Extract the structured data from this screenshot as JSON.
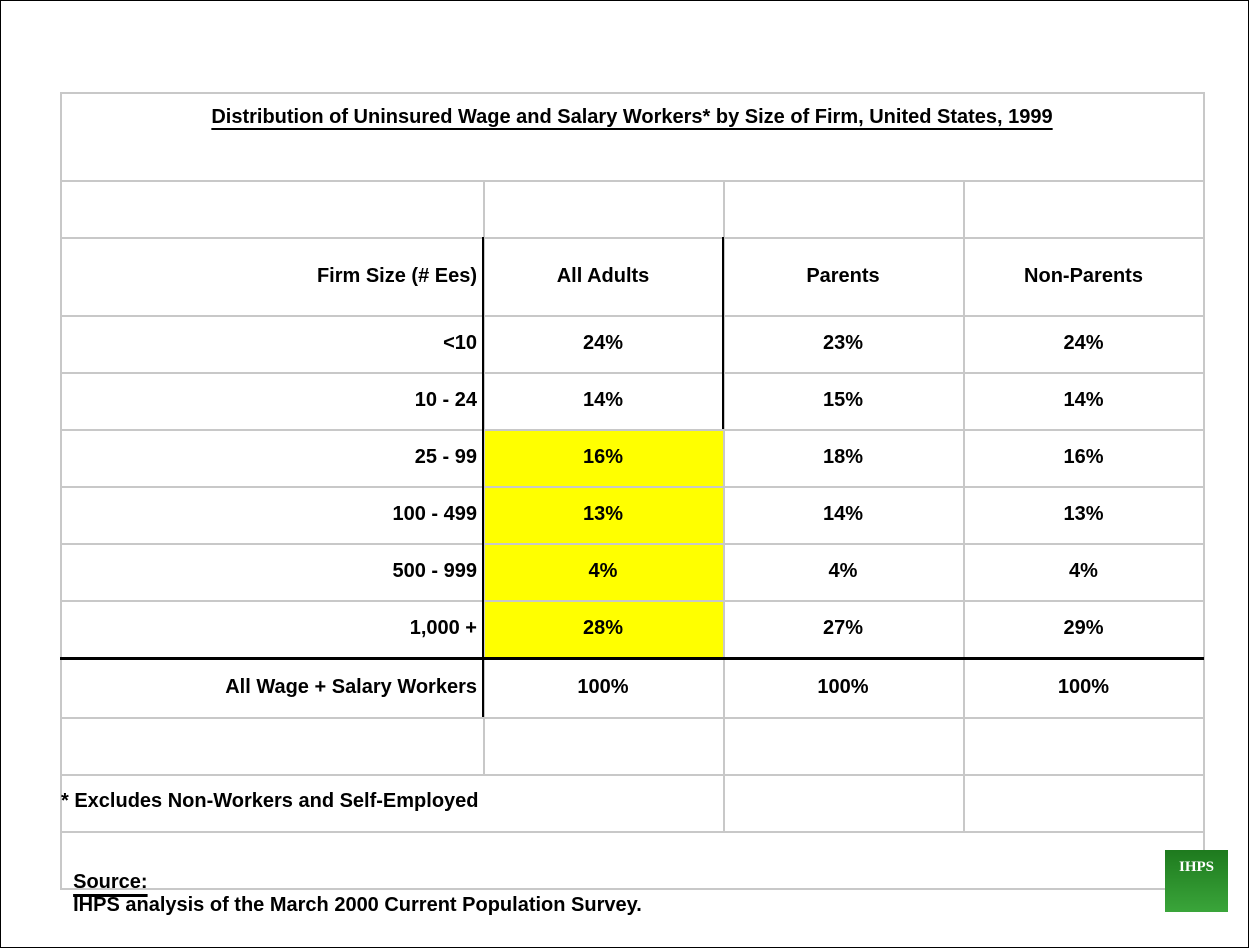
{
  "header": {
    "title": "Distribution of Uninsured Wage and Salary Workers* by Size of Firm, United States, 1999"
  },
  "table": {
    "columns": [
      "Firm Size (# Ees)",
      "All Adults",
      "Parents",
      "Non-Parents"
    ],
    "rows": [
      [
        "<10",
        "24%",
        "23%",
        "24%"
      ],
      [
        "10 - 24",
        "14%",
        "15%",
        "14%"
      ],
      [
        "25 - 99",
        "16%",
        "18%",
        "16%"
      ],
      [
        "100 - 499",
        "13%",
        "14%",
        "13%"
      ],
      [
        "500 - 999",
        "4%",
        "4%",
        "4%"
      ],
      [
        "1,000 +",
        "28%",
        "27%",
        "29%"
      ]
    ],
    "total": [
      "All Wage + Salary Workers",
      "100%",
      "100%",
      "100%"
    ]
  },
  "footnote": "* Excludes Non-Workers and Self-Employed",
  "source": {
    "label": "Source:",
    "text": "IHPS analysis of the March 2000 Current Population Survey."
  },
  "logo": "IHPS"
}
